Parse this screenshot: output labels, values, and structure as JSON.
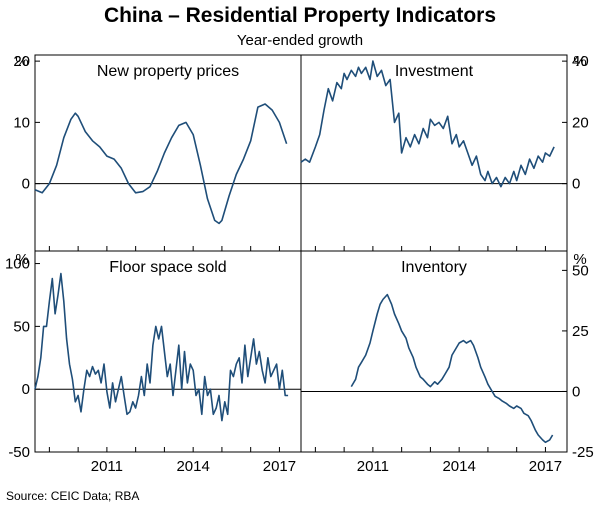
{
  "title": "China – Residential Property Indicators",
  "subtitle": "Year-ended growth",
  "source": "Source:   CEIC Data; RBA",
  "unit_label": "%",
  "line_color": "#1f4e79",
  "x_ticks": [
    "2011",
    "2014",
    "2017"
  ],
  "chart_data": [
    {
      "type": "line",
      "title": "New property prices",
      "xlim": [
        2008.5,
        2017.75
      ],
      "ylim": [
        -11,
        21
      ],
      "yticks": [
        0,
        10,
        20
      ],
      "ytick_labels": [
        "0",
        "10",
        "20"
      ],
      "y_axis_side": "left",
      "x": [
        2008.5,
        2008.75,
        2009.0,
        2009.25,
        2009.5,
        2009.75,
        2009.9,
        2010.0,
        2010.25,
        2010.5,
        2010.75,
        2011.0,
        2011.25,
        2011.5,
        2011.75,
        2012.0,
        2012.25,
        2012.5,
        2012.75,
        2013.0,
        2013.25,
        2013.5,
        2013.75,
        2014.0,
        2014.25,
        2014.5,
        2014.75,
        2014.9,
        2015.0,
        2015.25,
        2015.5,
        2015.75,
        2016.0,
        2016.25,
        2016.5,
        2016.75,
        2017.0,
        2017.25
      ],
      "values": [
        -1,
        -1.5,
        0,
        3,
        7.5,
        10.5,
        11.5,
        11,
        8.5,
        7,
        6,
        4.5,
        4,
        2.5,
        0,
        -1.5,
        -1.3,
        -0.5,
        2,
        5,
        7.5,
        9.5,
        10,
        8,
        3,
        -2.5,
        -6,
        -6.5,
        -6,
        -2,
        1.5,
        4,
        7,
        12.5,
        13,
        12,
        10,
        6.5
      ]
    },
    {
      "type": "line",
      "title": "Investment",
      "xlim": [
        2008.5,
        2017.75
      ],
      "ylim": [
        -22,
        42
      ],
      "yticks": [
        0,
        20,
        40
      ],
      "ytick_labels": [
        "0",
        "20",
        "40"
      ],
      "y_axis_side": "right",
      "x": [
        2008.5,
        2008.65,
        2008.8,
        2009.0,
        2009.15,
        2009.3,
        2009.45,
        2009.6,
        2009.75,
        2009.9,
        2010.0,
        2010.1,
        2010.25,
        2010.4,
        2010.5,
        2010.6,
        2010.75,
        2010.9,
        2011.0,
        2011.15,
        2011.3,
        2011.45,
        2011.6,
        2011.75,
        2011.9,
        2012.0,
        2012.15,
        2012.3,
        2012.45,
        2012.6,
        2012.75,
        2012.9,
        2013.0,
        2013.15,
        2013.3,
        2013.45,
        2013.6,
        2013.75,
        2013.9,
        2014.0,
        2014.15,
        2014.3,
        2014.45,
        2014.6,
        2014.75,
        2014.9,
        2015.0,
        2015.15,
        2015.3,
        2015.45,
        2015.6,
        2015.75,
        2015.9,
        2016.0,
        2016.15,
        2016.3,
        2016.45,
        2016.6,
        2016.75,
        2016.9,
        2017.0,
        2017.15,
        2017.3
      ],
      "values": [
        7,
        8,
        7,
        12,
        16,
        24,
        31,
        27,
        33,
        31,
        36,
        34,
        37,
        35,
        38,
        36,
        38,
        34,
        40,
        35,
        37,
        32,
        34,
        20,
        23,
        10,
        15,
        12,
        16,
        13,
        18,
        15,
        21,
        19,
        20,
        18,
        22,
        13,
        16,
        12,
        14,
        10,
        6,
        9,
        3,
        1,
        4,
        0,
        2,
        -1,
        2,
        0,
        4,
        1,
        6,
        3,
        8,
        5,
        9,
        7,
        10,
        9,
        12
      ]
    },
    {
      "type": "line",
      "title": "Floor space sold",
      "xlim": [
        2008.5,
        2017.75
      ],
      "ylim": [
        -50,
        110
      ],
      "yticks": [
        -50,
        0,
        50,
        100
      ],
      "ytick_labels": [
        "-50",
        "0",
        "50",
        "100"
      ],
      "y_axis_side": "left",
      "x": [
        2008.5,
        2008.6,
        2008.7,
        2008.8,
        2008.9,
        2009.0,
        2009.1,
        2009.2,
        2009.3,
        2009.4,
        2009.5,
        2009.6,
        2009.7,
        2009.8,
        2009.9,
        2010.0,
        2010.1,
        2010.2,
        2010.3,
        2010.4,
        2010.5,
        2010.6,
        2010.7,
        2010.8,
        2010.9,
        2011.0,
        2011.1,
        2011.2,
        2011.3,
        2011.4,
        2011.5,
        2011.6,
        2011.7,
        2011.8,
        2011.9,
        2012.0,
        2012.1,
        2012.2,
        2012.3,
        2012.4,
        2012.5,
        2012.6,
        2012.7,
        2012.8,
        2012.9,
        2013.0,
        2013.1,
        2013.2,
        2013.3,
        2013.4,
        2013.5,
        2013.6,
        2013.7,
        2013.8,
        2013.9,
        2014.0,
        2014.1,
        2014.2,
        2014.3,
        2014.4,
        2014.5,
        2014.6,
        2014.7,
        2014.8,
        2014.9,
        2015.0,
        2015.1,
        2015.2,
        2015.3,
        2015.4,
        2015.5,
        2015.6,
        2015.7,
        2015.8,
        2015.9,
        2016.0,
        2016.1,
        2016.2,
        2016.3,
        2016.4,
        2016.5,
        2016.6,
        2016.7,
        2016.8,
        2016.9,
        2017.0,
        2017.1,
        2017.2,
        2017.3
      ],
      "values": [
        0,
        10,
        25,
        50,
        50,
        70,
        88,
        60,
        75,
        92,
        70,
        40,
        20,
        8,
        -10,
        -5,
        -18,
        0,
        15,
        10,
        18,
        12,
        15,
        5,
        20,
        -2,
        -15,
        5,
        -10,
        0,
        10,
        -5,
        -20,
        -18,
        -10,
        -15,
        -5,
        10,
        -5,
        20,
        5,
        35,
        50,
        40,
        50,
        30,
        10,
        20,
        -5,
        15,
        35,
        0,
        30,
        5,
        20,
        15,
        -5,
        0,
        -20,
        10,
        -5,
        0,
        -20,
        -15,
        -5,
        -25,
        -10,
        -20,
        15,
        10,
        20,
        25,
        5,
        35,
        10,
        25,
        40,
        20,
        30,
        15,
        5,
        25,
        10,
        15,
        20,
        0,
        15,
        -5,
        -5
      ]
    },
    {
      "type": "line",
      "title": "Inventory",
      "xlim": [
        2008.5,
        2017.75
      ],
      "ylim": [
        -25,
        58
      ],
      "yticks": [
        -25,
        0,
        25,
        50
      ],
      "ytick_labels": [
        "-25",
        "0",
        "25",
        "50"
      ],
      "y_axis_side": "right",
      "x": [
        2010.25,
        2010.4,
        2010.5,
        2010.6,
        2010.75,
        2010.9,
        2011.0,
        2011.15,
        2011.25,
        2011.35,
        2011.5,
        2011.65,
        2011.75,
        2011.9,
        2012.0,
        2012.15,
        2012.25,
        2012.4,
        2012.5,
        2012.65,
        2012.75,
        2012.9,
        2013.0,
        2013.15,
        2013.25,
        2013.4,
        2013.5,
        2013.65,
        2013.75,
        2013.9,
        2014.0,
        2014.15,
        2014.25,
        2014.4,
        2014.5,
        2014.65,
        2014.75,
        2014.9,
        2015.0,
        2015.15,
        2015.25,
        2015.4,
        2015.5,
        2015.65,
        2015.75,
        2015.9,
        2016.0,
        2016.15,
        2016.25,
        2016.4,
        2016.5,
        2016.65,
        2016.75,
        2016.9,
        2017.0,
        2017.15,
        2017.25
      ],
      "values": [
        2,
        5,
        10,
        12,
        15,
        20,
        25,
        32,
        36,
        38,
        40,
        36,
        32,
        28,
        25,
        22,
        18,
        14,
        10,
        6,
        5,
        3,
        2,
        4,
        3,
        5,
        7,
        10,
        15,
        18,
        20,
        21,
        20,
        21,
        19,
        14,
        10,
        6,
        3,
        0,
        -2,
        -3,
        -4,
        -5,
        -6,
        -7,
        -6,
        -7,
        -9,
        -10,
        -12,
        -16,
        -18,
        -20,
        -21,
        -20,
        -18
      ]
    }
  ]
}
